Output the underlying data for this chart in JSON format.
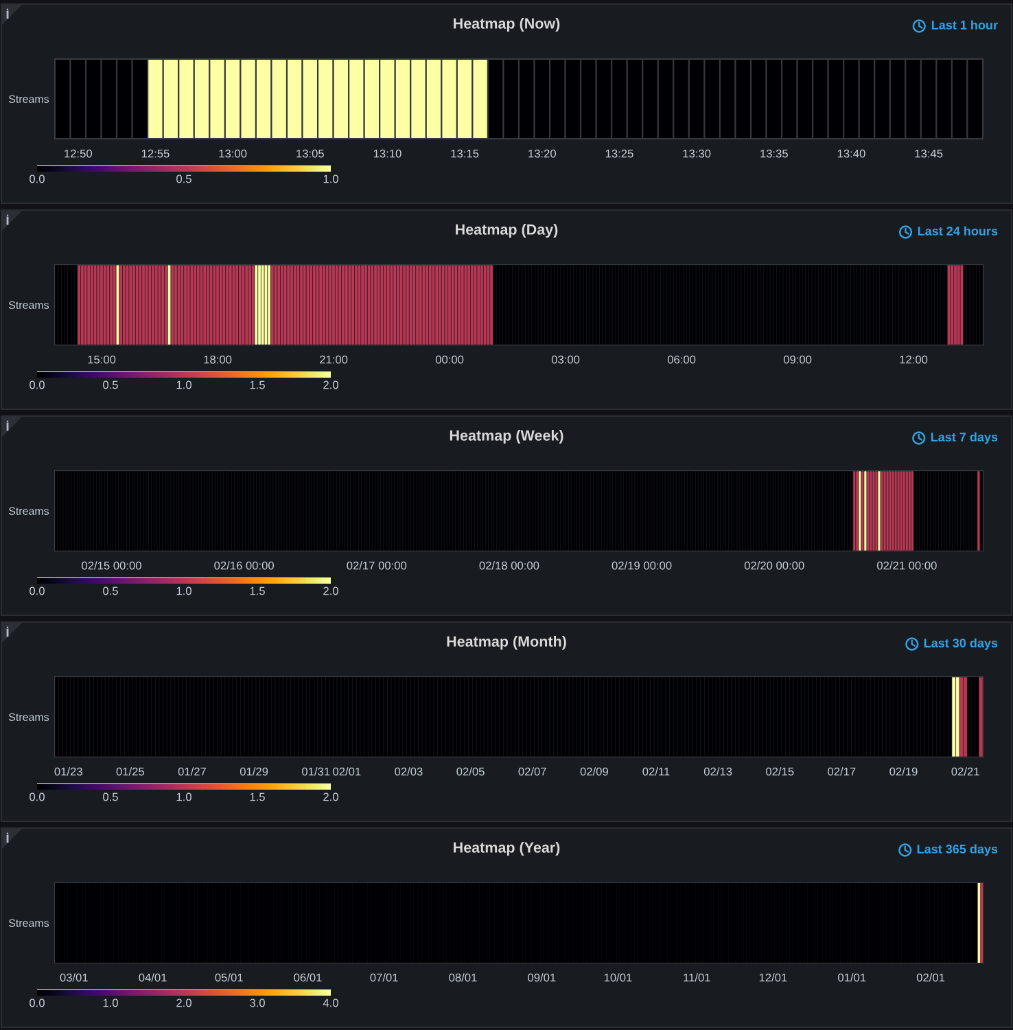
{
  "chart_data": [
    {
      "type": "heatmap",
      "title": "Heatmap (Now)",
      "subtitle": "Last 1 hour",
      "y_categories": [
        "Streams"
      ],
      "categories": [
        null,
        "12:50",
        null,
        null,
        null,
        null,
        "12:55",
        null,
        null,
        null,
        null,
        "13:00",
        null,
        null,
        null,
        null,
        "13:05",
        null,
        null,
        null,
        null,
        "13:10",
        null,
        null,
        null,
        null,
        "13:15",
        null,
        null,
        null,
        null,
        "13:20",
        null,
        null,
        null,
        null,
        "13:25",
        null,
        null,
        null,
        null,
        "13:30",
        null,
        null,
        null,
        null,
        "13:35",
        null,
        null,
        null,
        null,
        "13:40",
        null,
        null,
        null,
        null,
        "13:45",
        null,
        null,
        null
      ],
      "cells": [
        [
          0,
          0,
          0,
          0,
          0,
          0,
          1,
          1,
          1,
          1,
          1,
          1,
          1,
          1,
          1,
          1,
          1,
          1,
          1,
          1,
          1,
          1,
          1,
          1,
          1,
          1,
          1,
          1,
          0,
          0,
          0,
          0,
          0,
          0,
          0,
          0,
          0,
          0,
          0,
          0,
          0,
          0,
          0,
          0,
          0,
          0,
          0,
          0,
          0,
          0,
          0,
          0,
          0,
          0,
          0,
          0,
          0,
          0,
          0,
          0
        ]
      ],
      "clim": [
        0,
        1
      ],
      "cticks": [
        {
          "value": 0,
          "label": "0.0"
        },
        {
          "value": 0.5,
          "label": "0.5"
        },
        {
          "value": 1,
          "label": "1.0"
        }
      ]
    },
    {
      "type": "heatmap",
      "title": "Heatmap (Day)",
      "subtitle": "Last 24 hours",
      "y_categories": [
        "Streams"
      ],
      "categories": [
        null,
        null,
        null,
        null,
        null,
        null,
        null,
        null,
        null,
        null,
        null,
        null,
        null,
        null,
        "15:00",
        null,
        null,
        null,
        null,
        null,
        null,
        null,
        null,
        null,
        null,
        null,
        null,
        null,
        null,
        null,
        null,
        null,
        null,
        null,
        null,
        null,
        null,
        null,
        null,
        null,
        null,
        null,
        null,
        null,
        null,
        null,
        null,
        null,
        null,
        null,
        "18:00",
        null,
        null,
        null,
        null,
        null,
        null,
        null,
        null,
        null,
        null,
        null,
        null,
        null,
        null,
        null,
        null,
        null,
        null,
        null,
        null,
        null,
        null,
        null,
        null,
        null,
        null,
        null,
        null,
        null,
        null,
        null,
        null,
        null,
        null,
        null,
        "21:00",
        null,
        null,
        null,
        null,
        null,
        null,
        null,
        null,
        null,
        null,
        null,
        null,
        null,
        null,
        null,
        null,
        null,
        null,
        null,
        null,
        null,
        null,
        null,
        null,
        null,
        null,
        null,
        null,
        null,
        null,
        null,
        null,
        null,
        null,
        null,
        "00:00",
        null,
        null,
        null,
        null,
        null,
        null,
        null,
        null,
        null,
        null,
        null,
        null,
        null,
        null,
        null,
        null,
        null,
        null,
        null,
        null,
        null,
        null,
        null,
        null,
        null,
        null,
        null,
        null,
        null,
        null,
        null,
        null,
        null,
        null,
        null,
        "03:00",
        null,
        null,
        null,
        null,
        null,
        null,
        null,
        null,
        null,
        null,
        null,
        null,
        null,
        null,
        null,
        null,
        null,
        null,
        null,
        null,
        null,
        null,
        null,
        null,
        null,
        null,
        null,
        null,
        null,
        null,
        null,
        null,
        null,
        null,
        null,
        "06:00",
        null,
        null,
        null,
        null,
        null,
        null,
        null,
        null,
        null,
        null,
        null,
        null,
        null,
        null,
        null,
        null,
        null,
        null,
        null,
        null,
        null,
        null,
        null,
        null,
        null,
        null,
        null,
        null,
        null,
        null,
        null,
        null,
        null,
        null,
        null,
        "09:00",
        null,
        null,
        null,
        null,
        null,
        null,
        null,
        null,
        null,
        null,
        null,
        null,
        null,
        null,
        null,
        null,
        null,
        null,
        null,
        null,
        null,
        null,
        null,
        null,
        null,
        null,
        null,
        null,
        null,
        null,
        null,
        null,
        null,
        null,
        null,
        "12:00",
        null,
        null,
        null,
        null,
        null,
        null,
        null,
        null,
        null,
        null,
        null,
        null,
        null,
        null,
        null,
        null,
        null,
        null,
        null,
        null,
        null
      ],
      "cells": [
        [
          0,
          0,
          0,
          0,
          0,
          0,
          0,
          1,
          1,
          1,
          1,
          1,
          1,
          1,
          1,
          1,
          1,
          1,
          1,
          2,
          1,
          1,
          1,
          1,
          1,
          1,
          1,
          1,
          1,
          1,
          1,
          1,
          1,
          1,
          1,
          2,
          1,
          1,
          1,
          1,
          1,
          1,
          1,
          1,
          1,
          1,
          1,
          1,
          1,
          1,
          1,
          1,
          1,
          1,
          1,
          1,
          1,
          1,
          1,
          1,
          1,
          1,
          2,
          2,
          2,
          2,
          2,
          1,
          1,
          1,
          1,
          1,
          1,
          1,
          1,
          1,
          1,
          1,
          1,
          1,
          1,
          1,
          1,
          1,
          1,
          1,
          1,
          1,
          1,
          1,
          1,
          1,
          1,
          1,
          1,
          1,
          1,
          1,
          1,
          1,
          1,
          1,
          1,
          1,
          1,
          1,
          1,
          1,
          1,
          1,
          1,
          1,
          1,
          1,
          1,
          1,
          1,
          1,
          1,
          1,
          1,
          1,
          1,
          1,
          1,
          1,
          1,
          1,
          1,
          1,
          1,
          1,
          1,
          1,
          1,
          1,
          0,
          0,
          0,
          0,
          0,
          0,
          0,
          0,
          0,
          0,
          0,
          0,
          0,
          0,
          0,
          0,
          0,
          0,
          0,
          0,
          0,
          0,
          0,
          0,
          0,
          0,
          0,
          0,
          0,
          0,
          0,
          0,
          0,
          0,
          0,
          0,
          0,
          0,
          0,
          0,
          0,
          0,
          0,
          0,
          0,
          0,
          0,
          0,
          0,
          0,
          0,
          0,
          0,
          0,
          0,
          0,
          0,
          0,
          0,
          0,
          0,
          0,
          0,
          0,
          0,
          0,
          0,
          0,
          0,
          0,
          0,
          0,
          0,
          0,
          0,
          0,
          0,
          0,
          0,
          0,
          0,
          0,
          0,
          0,
          0,
          0,
          0,
          0,
          0,
          0,
          0,
          0,
          0,
          0,
          0,
          0,
          0,
          0,
          0,
          0,
          0,
          0,
          0,
          0,
          0,
          0,
          0,
          0,
          0,
          0,
          0,
          0,
          0,
          0,
          0,
          0,
          0,
          0,
          0,
          0,
          0,
          0,
          0,
          0,
          0,
          0,
          0,
          0,
          0,
          0,
          0,
          0,
          0,
          0,
          0,
          0,
          0,
          0,
          0,
          0,
          0,
          1,
          1,
          1,
          1,
          1,
          0,
          0,
          0,
          0,
          0,
          0
        ]
      ],
      "clim": [
        0,
        2
      ],
      "cticks": [
        {
          "value": 0,
          "label": "0.0"
        },
        {
          "value": 0.5,
          "label": "0.5"
        },
        {
          "value": 1,
          "label": "1.0"
        },
        {
          "value": 1.5,
          "label": "1.5"
        },
        {
          "value": 2,
          "label": "2.0"
        }
      ]
    },
    {
      "type": "heatmap",
      "title": "Heatmap (Week)",
      "subtitle": "Last 7 days",
      "y_categories": [
        "Streams"
      ],
      "categories": [
        null,
        null,
        null,
        null,
        null,
        null,
        null,
        null,
        null,
        null,
        null,
        null,
        null,
        null,
        null,
        null,
        null,
        null,
        null,
        null,
        "02/15 00:00",
        null,
        null,
        null,
        null,
        null,
        null,
        null,
        null,
        null,
        null,
        null,
        null,
        null,
        null,
        null,
        null,
        null,
        null,
        null,
        null,
        null,
        null,
        null,
        null,
        null,
        null,
        null,
        null,
        null,
        null,
        null,
        null,
        null,
        null,
        null,
        null,
        null,
        null,
        null,
        null,
        null,
        null,
        null,
        null,
        null,
        null,
        null,
        "02/16 00:00",
        null,
        null,
        null,
        null,
        null,
        null,
        null,
        null,
        null,
        null,
        null,
        null,
        null,
        null,
        null,
        null,
        null,
        null,
        null,
        null,
        null,
        null,
        null,
        null,
        null,
        null,
        null,
        null,
        null,
        null,
        null,
        null,
        null,
        null,
        null,
        null,
        null,
        null,
        null,
        null,
        null,
        null,
        null,
        null,
        null,
        null,
        null,
        "02/17 00:00",
        null,
        null,
        null,
        null,
        null,
        null,
        null,
        null,
        null,
        null,
        null,
        null,
        null,
        null,
        null,
        null,
        null,
        null,
        null,
        null,
        null,
        null,
        null,
        null,
        null,
        null,
        null,
        null,
        null,
        null,
        null,
        null,
        null,
        null,
        null,
        null,
        null,
        null,
        null,
        null,
        null,
        null,
        null,
        null,
        null,
        null,
        null,
        "02/18 00:00",
        null,
        null,
        null,
        null,
        null,
        null,
        null,
        null,
        null,
        null,
        null,
        null,
        null,
        null,
        null,
        null,
        null,
        null,
        null,
        null,
        null,
        null,
        null,
        null,
        null,
        null,
        null,
        null,
        null,
        null,
        null,
        null,
        null,
        null,
        null,
        null,
        null,
        null,
        null,
        null,
        null,
        null,
        null,
        null,
        null,
        null,
        null,
        "02/19 00:00",
        null,
        null,
        null,
        null,
        null,
        null,
        null,
        null,
        null,
        null,
        null,
        null,
        null,
        null,
        null,
        null,
        null,
        null,
        null,
        null,
        null,
        null,
        null,
        null,
        null,
        null,
        null,
        null,
        null,
        null,
        null,
        null,
        null,
        null,
        null,
        null,
        null,
        null,
        null,
        null,
        null,
        null,
        null,
        null,
        null,
        null,
        null,
        "02/20 00:00",
        null,
        null,
        null,
        null,
        null,
        null,
        null,
        null,
        null,
        null,
        null,
        null,
        null,
        null,
        null,
        null,
        null,
        null,
        null,
        null,
        null,
        null,
        null,
        null,
        null,
        null,
        null,
        null,
        null,
        null,
        null,
        null,
        null,
        null,
        null,
        null,
        null,
        null,
        null,
        null,
        null,
        null,
        null,
        null,
        null,
        null,
        null,
        "02/21 00:00",
        null,
        null,
        null,
        null,
        null,
        null,
        null,
        null,
        null,
        null,
        null,
        null,
        null,
        null,
        null,
        null,
        null,
        null,
        null,
        null,
        null,
        null,
        null,
        null,
        null,
        null,
        null
      ],
      "cells": [
        [
          0,
          0,
          0,
          0,
          0,
          0,
          0,
          0,
          0,
          0,
          0,
          0,
          0,
          0,
          0,
          0,
          0,
          0,
          0,
          0,
          0,
          0,
          0,
          0,
          0,
          0,
          0,
          0,
          0,
          0,
          0,
          0,
          0,
          0,
          0,
          0,
          0,
          0,
          0,
          0,
          0,
          0,
          0,
          0,
          0,
          0,
          0,
          0,
          0,
          0,
          0,
          0,
          0,
          0,
          0,
          0,
          0,
          0,
          0,
          0,
          0,
          0,
          0,
          0,
          0,
          0,
          0,
          0,
          0,
          0,
          0,
          0,
          0,
          0,
          0,
          0,
          0,
          0,
          0,
          0,
          0,
          0,
          0,
          0,
          0,
          0,
          0,
          0,
          0,
          0,
          0,
          0,
          0,
          0,
          0,
          0,
          0,
          0,
          0,
          0,
          0,
          0,
          0,
          0,
          0,
          0,
          0,
          0,
          0,
          0,
          0,
          0,
          0,
          0,
          0,
          0,
          0,
          0,
          0,
          0,
          0,
          0,
          0,
          0,
          0,
          0,
          0,
          0,
          0,
          0,
          0,
          0,
          0,
          0,
          0,
          0,
          0,
          0,
          0,
          0,
          0,
          0,
          0,
          0,
          0,
          0,
          0,
          0,
          0,
          0,
          0,
          0,
          0,
          0,
          0,
          0,
          0,
          0,
          0,
          0,
          0,
          0,
          0,
          0,
          0,
          0,
          0,
          0,
          0,
          0,
          0,
          0,
          0,
          0,
          0,
          0,
          0,
          0,
          0,
          0,
          0,
          0,
          0,
          0,
          0,
          0,
          0,
          0,
          0,
          0,
          0,
          0,
          0,
          0,
          0,
          0,
          0,
          0,
          0,
          0,
          0,
          0,
          0,
          0,
          0,
          0,
          0,
          0,
          0,
          0,
          0,
          0,
          0,
          0,
          0,
          0,
          0,
          0,
          0,
          0,
          0,
          0,
          0,
          0,
          0,
          0,
          0,
          0,
          0,
          0,
          0,
          0,
          0,
          0,
          0,
          0,
          0,
          0,
          0,
          0,
          0,
          0,
          0,
          0,
          0,
          0,
          0,
          0,
          0,
          0,
          0,
          0,
          0,
          0,
          0,
          0,
          0,
          0,
          0,
          0,
          0,
          0,
          0,
          0,
          0,
          0,
          0,
          0,
          0,
          0,
          0,
          0,
          0,
          0,
          0,
          0,
          0,
          0,
          0,
          0,
          0,
          0,
          0,
          0,
          0,
          0,
          0,
          0,
          0,
          1,
          1,
          2,
          1,
          2,
          1,
          1,
          1,
          1,
          2,
          1,
          1,
          1,
          1,
          1,
          1,
          1,
          1,
          1,
          1,
          1,
          1,
          0,
          0,
          0,
          0,
          0,
          0,
          0,
          0,
          0,
          0,
          0,
          0,
          0,
          0,
          0,
          0,
          0,
          0,
          0,
          0,
          0,
          0,
          0,
          1,
          0
        ]
      ],
      "clim": [
        0,
        2
      ],
      "cticks": [
        {
          "value": 0,
          "label": "0.0"
        },
        {
          "value": 0.5,
          "label": "0.5"
        },
        {
          "value": 1,
          "label": "1.0"
        },
        {
          "value": 1.5,
          "label": "1.5"
        },
        {
          "value": 2,
          "label": "2.0"
        }
      ]
    },
    {
      "type": "heatmap",
      "title": "Heatmap (Month)",
      "subtitle": "Last 30 days",
      "y_categories": [
        "Streams"
      ],
      "categories": [
        null,
        null,
        null,
        "01/23",
        null,
        null,
        null,
        null,
        null,
        null,
        null,
        null,
        null,
        null,
        null,
        null,
        null,
        null,
        null,
        "01/25",
        null,
        null,
        null,
        null,
        null,
        null,
        null,
        null,
        null,
        null,
        null,
        null,
        null,
        null,
        null,
        "01/27",
        null,
        null,
        null,
        null,
        null,
        null,
        null,
        null,
        null,
        null,
        null,
        null,
        null,
        null,
        null,
        "01/29",
        null,
        null,
        null,
        null,
        null,
        null,
        null,
        null,
        null,
        null,
        null,
        null,
        null,
        null,
        null,
        "01/31",
        null,
        null,
        null,
        null,
        null,
        null,
        null,
        "02/01",
        null,
        null,
        null,
        null,
        null,
        null,
        null,
        null,
        null,
        null,
        null,
        null,
        null,
        null,
        null,
        "02/03",
        null,
        null,
        null,
        null,
        null,
        null,
        null,
        null,
        null,
        null,
        null,
        null,
        null,
        null,
        null,
        "02/05",
        null,
        null,
        null,
        null,
        null,
        null,
        null,
        null,
        null,
        null,
        null,
        null,
        null,
        null,
        null,
        "02/07",
        null,
        null,
        null,
        null,
        null,
        null,
        null,
        null,
        null,
        null,
        null,
        null,
        null,
        null,
        null,
        "02/09",
        null,
        null,
        null,
        null,
        null,
        null,
        null,
        null,
        null,
        null,
        null,
        null,
        null,
        null,
        null,
        "02/11",
        null,
        null,
        null,
        null,
        null,
        null,
        null,
        null,
        null,
        null,
        null,
        null,
        null,
        null,
        null,
        "02/13",
        null,
        null,
        null,
        null,
        null,
        null,
        null,
        null,
        null,
        null,
        null,
        null,
        null,
        null,
        null,
        "02/15",
        null,
        null,
        null,
        null,
        null,
        null,
        null,
        null,
        null,
        null,
        null,
        null,
        null,
        null,
        null,
        "02/17",
        null,
        null,
        null,
        null,
        null,
        null,
        null,
        null,
        null,
        null,
        null,
        null,
        null,
        null,
        null,
        "02/19",
        null,
        null,
        null,
        null,
        null,
        null,
        null,
        null,
        null,
        null,
        null,
        null,
        null,
        null,
        null,
        "02/21",
        null,
        null,
        null,
        null
      ],
      "cells": [
        [
          0,
          0,
          0,
          0,
          0,
          0,
          0,
          0,
          0,
          0,
          0,
          0,
          0,
          0,
          0,
          0,
          0,
          0,
          0,
          0,
          0,
          0,
          0,
          0,
          0,
          0,
          0,
          0,
          0,
          0,
          0,
          0,
          0,
          0,
          0,
          0,
          0,
          0,
          0,
          0,
          0,
          0,
          0,
          0,
          0,
          0,
          0,
          0,
          0,
          0,
          0,
          0,
          0,
          0,
          0,
          0,
          0,
          0,
          0,
          0,
          0,
          0,
          0,
          0,
          0,
          0,
          0,
          0,
          0,
          0,
          0,
          0,
          0,
          0,
          0,
          0,
          0,
          0,
          0,
          0,
          0,
          0,
          0,
          0,
          0,
          0,
          0,
          0,
          0,
          0,
          0,
          0,
          0,
          0,
          0,
          0,
          0,
          0,
          0,
          0,
          0,
          0,
          0,
          0,
          0,
          0,
          0,
          0,
          0,
          0,
          0,
          0,
          0,
          0,
          0,
          0,
          0,
          0,
          0,
          0,
          0,
          0,
          0,
          0,
          0,
          0,
          0,
          0,
          0,
          0,
          0,
          0,
          0,
          0,
          0,
          0,
          0,
          0,
          0,
          0,
          0,
          0,
          0,
          0,
          0,
          0,
          0,
          0,
          0,
          0,
          0,
          0,
          0,
          0,
          0,
          0,
          0,
          0,
          0,
          0,
          0,
          0,
          0,
          0,
          0,
          0,
          0,
          0,
          0,
          0,
          0,
          0,
          0,
          0,
          0,
          0,
          0,
          0,
          0,
          0,
          0,
          0,
          0,
          0,
          0,
          0,
          0,
          0,
          0,
          0,
          0,
          0,
          0,
          0,
          0,
          0,
          0,
          0,
          0,
          0,
          0,
          0,
          0,
          0,
          0,
          0,
          0,
          0,
          0,
          0,
          0,
          0,
          0,
          0,
          0,
          0,
          0,
          0,
          0,
          0,
          0,
          0,
          0,
          0,
          0,
          0,
          0,
          0,
          0,
          0,
          0,
          0,
          2,
          2,
          1,
          1,
          0,
          0,
          0,
          1
        ]
      ],
      "clim": [
        0,
        2
      ],
      "cticks": [
        {
          "value": 0,
          "label": "0.0"
        },
        {
          "value": 0.5,
          "label": "0.5"
        },
        {
          "value": 1,
          "label": "1.0"
        },
        {
          "value": 1.5,
          "label": "1.5"
        },
        {
          "value": 2,
          "label": "2.0"
        }
      ]
    },
    {
      "type": "heatmap",
      "title": "Heatmap (Year)",
      "subtitle": "Last 365 days",
      "y_categories": [
        "Streams"
      ],
      "categories": [
        null,
        null,
        null,
        null,
        null,
        null,
        null,
        "03/01",
        null,
        null,
        null,
        null,
        null,
        null,
        null,
        null,
        null,
        null,
        null,
        null,
        null,
        null,
        null,
        null,
        null,
        null,
        null,
        null,
        null,
        null,
        null,
        null,
        null,
        null,
        null,
        null,
        null,
        null,
        "04/01",
        null,
        null,
        null,
        null,
        null,
        null,
        null,
        null,
        null,
        null,
        null,
        null,
        null,
        null,
        null,
        null,
        null,
        null,
        null,
        null,
        null,
        null,
        null,
        null,
        null,
        null,
        null,
        null,
        null,
        "05/01",
        null,
        null,
        null,
        null,
        null,
        null,
        null,
        null,
        null,
        null,
        null,
        null,
        null,
        null,
        null,
        null,
        null,
        null,
        null,
        null,
        null,
        null,
        null,
        null,
        null,
        null,
        null,
        null,
        null,
        null,
        "06/01",
        null,
        null,
        null,
        null,
        null,
        null,
        null,
        null,
        null,
        null,
        null,
        null,
        null,
        null,
        null,
        null,
        null,
        null,
        null,
        null,
        null,
        null,
        null,
        null,
        null,
        null,
        null,
        null,
        null,
        "07/01",
        null,
        null,
        null,
        null,
        null,
        null,
        null,
        null,
        null,
        null,
        null,
        null,
        null,
        null,
        null,
        null,
        null,
        null,
        null,
        null,
        null,
        null,
        null,
        null,
        null,
        null,
        null,
        null,
        null,
        null,
        "08/01",
        null,
        null,
        null,
        null,
        null,
        null,
        null,
        null,
        null,
        null,
        null,
        null,
        null,
        null,
        null,
        null,
        null,
        null,
        null,
        null,
        null,
        null,
        null,
        null,
        null,
        null,
        null,
        null,
        null,
        null,
        "09/01",
        null,
        null,
        null,
        null,
        null,
        null,
        null,
        null,
        null,
        null,
        null,
        null,
        null,
        null,
        null,
        null,
        null,
        null,
        null,
        null,
        null,
        null,
        null,
        null,
        null,
        null,
        null,
        null,
        null,
        "10/01",
        null,
        null,
        null,
        null,
        null,
        null,
        null,
        null,
        null,
        null,
        null,
        null,
        null,
        null,
        null,
        null,
        null,
        null,
        null,
        null,
        null,
        null,
        null,
        null,
        null,
        null,
        null,
        null,
        null,
        null,
        "11/01",
        null,
        null,
        null,
        null,
        null,
        null,
        null,
        null,
        null,
        null,
        null,
        null,
        null,
        null,
        null,
        null,
        null,
        null,
        null,
        null,
        null,
        null,
        null,
        null,
        null,
        null,
        null,
        null,
        null,
        "12/01",
        null,
        null,
        null,
        null,
        null,
        null,
        null,
        null,
        null,
        null,
        null,
        null,
        null,
        null,
        null,
        null,
        null,
        null,
        null,
        null,
        null,
        null,
        null,
        null,
        null,
        null,
        null,
        null,
        null,
        null,
        "01/01",
        null,
        null,
        null,
        null,
        null,
        null,
        null,
        null,
        null,
        null,
        null,
        null,
        null,
        null,
        null,
        null,
        null,
        null,
        null,
        null,
        null,
        null,
        null,
        null,
        null,
        null,
        null,
        null,
        null,
        null,
        "02/01",
        null,
        null,
        null,
        null,
        null,
        null,
        null,
        null,
        null,
        null,
        null,
        null,
        null,
        null,
        null,
        null,
        null,
        null,
        null,
        null
      ],
      "cells": [
        [
          0,
          0,
          0,
          0,
          0,
          0,
          0,
          0,
          0,
          0,
          0,
          0,
          0,
          0,
          0,
          0,
          0,
          0,
          0,
          0,
          0,
          0,
          0,
          0,
          0,
          0,
          0,
          0,
          0,
          0,
          0,
          0,
          0,
          0,
          0,
          0,
          0,
          0,
          0,
          0,
          0,
          0,
          0,
          0,
          0,
          0,
          0,
          0,
          0,
          0,
          0,
          0,
          0,
          0,
          0,
          0,
          0,
          0,
          0,
          0,
          0,
          0,
          0,
          0,
          0,
          0,
          0,
          0,
          0,
          0,
          0,
          0,
          0,
          0,
          0,
          0,
          0,
          0,
          0,
          0,
          0,
          0,
          0,
          0,
          0,
          0,
          0,
          0,
          0,
          0,
          0,
          0,
          0,
          0,
          0,
          0,
          0,
          0,
          0,
          0,
          0,
          0,
          0,
          0,
          0,
          0,
          0,
          0,
          0,
          0,
          0,
          0,
          0,
          0,
          0,
          0,
          0,
          0,
          0,
          0,
          0,
          0,
          0,
          0,
          0,
          0,
          0,
          0,
          0,
          0,
          0,
          0,
          0,
          0,
          0,
          0,
          0,
          0,
          0,
          0,
          0,
          0,
          0,
          0,
          0,
          0,
          0,
          0,
          0,
          0,
          0,
          0,
          0,
          0,
          0,
          0,
          0,
          0,
          0,
          0,
          0,
          0,
          0,
          0,
          0,
          0,
          0,
          0,
          0,
          0,
          0,
          0,
          0,
          0,
          0,
          0,
          0,
          0,
          0,
          0,
          0,
          0,
          0,
          0,
          0,
          0,
          0,
          0,
          0,
          0,
          0,
          0,
          0,
          0,
          0,
          0,
          0,
          0,
          0,
          0,
          0,
          0,
          0,
          0,
          0,
          0,
          0,
          0,
          0,
          0,
          0,
          0,
          0,
          0,
          0,
          0,
          0,
          0,
          0,
          0,
          0,
          0,
          0,
          0,
          0,
          0,
          0,
          0,
          0,
          0,
          0,
          0,
          0,
          0,
          0,
          0,
          0,
          0,
          0,
          0,
          0,
          0,
          0,
          0,
          0,
          0,
          0,
          0,
          0,
          0,
          0,
          0,
          0,
          0,
          0,
          0,
          0,
          0,
          0,
          0,
          0,
          0,
          0,
          0,
          0,
          0,
          0,
          0,
          0,
          0,
          0,
          0,
          0,
          0,
          0,
          0,
          0,
          0,
          0,
          0,
          0,
          0,
          0,
          0,
          0,
          0,
          0,
          0,
          0,
          0,
          0,
          0,
          0,
          0,
          0,
          0,
          0,
          0,
          0,
          0,
          0,
          0,
          0,
          0,
          0,
          0,
          0,
          0,
          0,
          0,
          0,
          0,
          0,
          0,
          0,
          0,
          0,
          0,
          0,
          0,
          0,
          0,
          0,
          0,
          0,
          0,
          0,
          0,
          0,
          0,
          0,
          0,
          0,
          0,
          0,
          0,
          0,
          0,
          0,
          0,
          0,
          0,
          0,
          0,
          0,
          0,
          0,
          0,
          0,
          0,
          0,
          0,
          0,
          0,
          0,
          0,
          0,
          0,
          0,
          0,
          0,
          0,
          0,
          4,
          2
        ]
      ],
      "clim": [
        0,
        4
      ],
      "cticks": [
        {
          "value": 0,
          "label": "0.0"
        },
        {
          "value": 1,
          "label": "1.0"
        },
        {
          "value": 2,
          "label": "2.0"
        },
        {
          "value": 3,
          "label": "3.0"
        },
        {
          "value": 4,
          "label": "4.0"
        }
      ]
    }
  ]
}
